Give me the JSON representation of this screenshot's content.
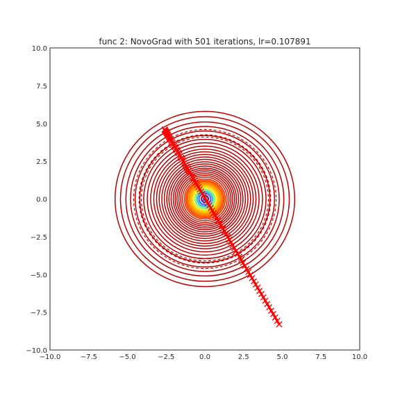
{
  "chart_data": {
    "type": "contour",
    "title": "func 2: NovoGrad with 501 iterations, lr=0.107891",
    "xlabel": "",
    "ylabel": "",
    "xlim": [
      -10.0,
      10.0
    ],
    "ylim": [
      -10.0,
      10.0
    ],
    "x_ticks": [
      -10.0,
      -7.5,
      -5.0,
      -2.5,
      0.0,
      2.5,
      5.0,
      7.5,
      10.0
    ],
    "x_tick_labels": [
      "−10.0",
      "−7.5",
      "−5.0",
      "−2.5",
      "0.0",
      "2.5",
      "5.0",
      "7.5",
      "10.0"
    ],
    "y_ticks": [
      10.0,
      7.5,
      5.0,
      2.5,
      0.0,
      -2.5,
      -5.0,
      -7.5,
      -10.0
    ],
    "y_tick_labels": [
      "10.0",
      "7.5",
      "5.0",
      "2.5",
      "0.0",
      "−2.5",
      "−5.0",
      "−7.5",
      "−10.0"
    ],
    "grid": false,
    "contour_center": [
      0.0,
      0.0
    ],
    "contour_radii": [
      0.22,
      0.38,
      0.5,
      0.62,
      0.72,
      0.82,
      0.92,
      1.02,
      1.12,
      1.22,
      1.32,
      1.44,
      1.56,
      1.68,
      1.8,
      1.92,
      2.04,
      2.18,
      2.32,
      2.46,
      2.62,
      2.78,
      2.95,
      3.12,
      3.3,
      3.5,
      3.72,
      3.95,
      4.2,
      4.5,
      4.8,
      5.1,
      5.45,
      5.8
    ],
    "contour_colors": [
      "#1a2fd6",
      "#3f6cf2",
      "#29c4d0",
      "#7cf08a",
      "#f3f046",
      "#ffd400",
      "#ffb000",
      "#ff8c00",
      "#ff6a00",
      "#ff4a00",
      "#f02a00",
      "#e01800",
      "#d20e00",
      "#c80600",
      "#c00000",
      "#b80000"
    ],
    "dashed_radii": [
      4.1,
      4.25,
      4.6
    ],
    "trajectory_start": [
      -2.6,
      4.6
    ],
    "trajectory_end": [
      4.8,
      -8.3
    ],
    "trajectory_color": "#ff0000",
    "trajectory_marker": "x",
    "iterations": 501,
    "lr": 0.107891
  }
}
